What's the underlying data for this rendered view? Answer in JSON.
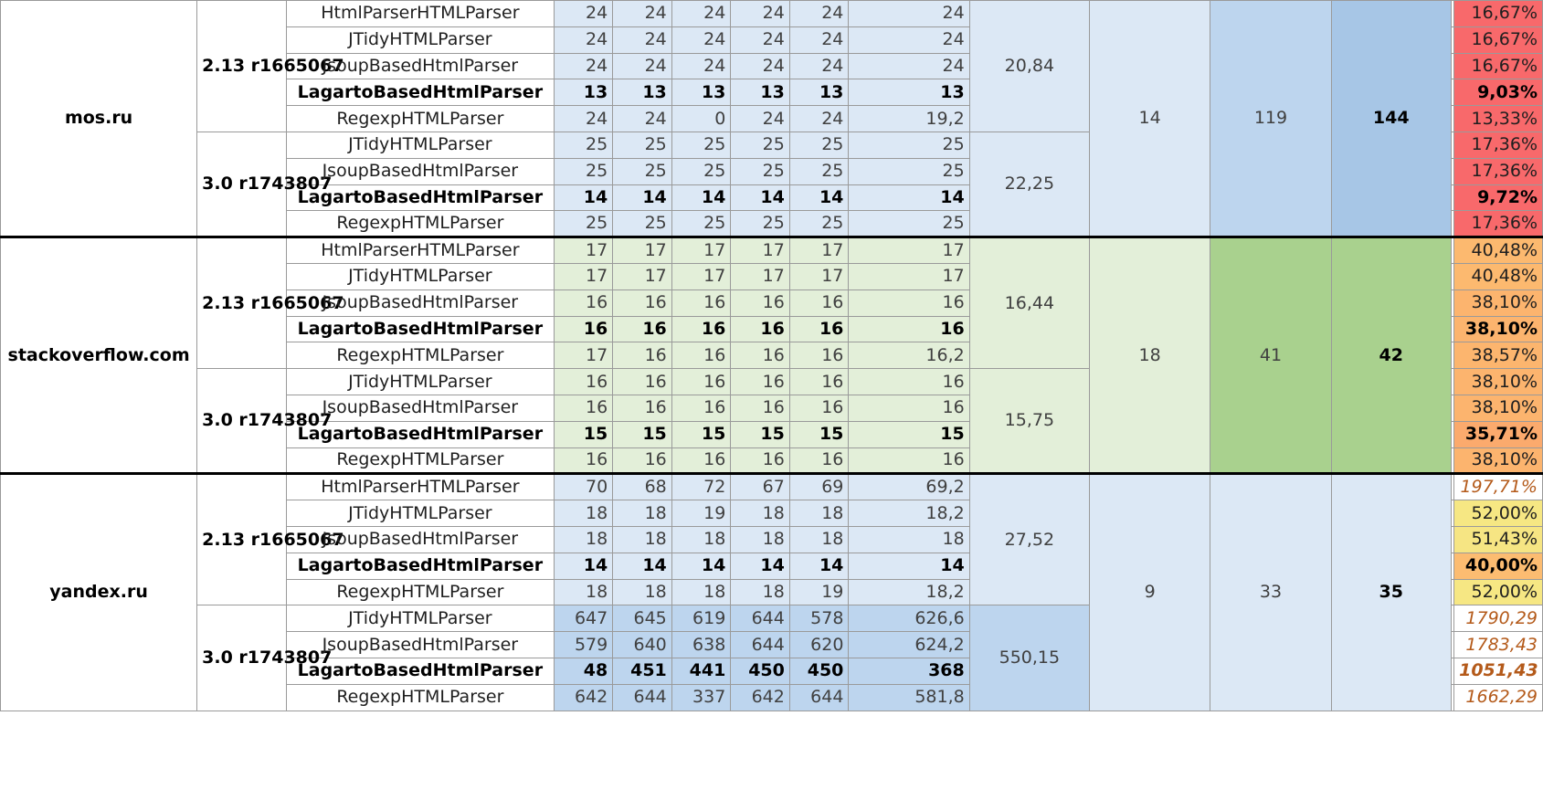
{
  "sites": [
    {
      "name": "mos.ru",
      "col_h": "14",
      "col_i": "119",
      "col_j": "144",
      "versions": [
        {
          "label": "2.13 r1665067",
          "avg": "20,84",
          "rows": [
            {
              "parser": "HtmlParserHTMLParser",
              "bold": false,
              "vals": [
                "24",
                "24",
                "24",
                "24",
                "24"
              ],
              "mean": "24",
              "pct": "16,67%",
              "pct_color": "#f8696b",
              "pct_style": "normal"
            },
            {
              "parser": "JTidyHTMLParser",
              "bold": false,
              "vals": [
                "24",
                "24",
                "24",
                "24",
                "24"
              ],
              "mean": "24",
              "pct": "16,67%",
              "pct_color": "#f8696b",
              "pct_style": "normal"
            },
            {
              "parser": "JsoupBasedHtmlParser",
              "bold": false,
              "vals": [
                "24",
                "24",
                "24",
                "24",
                "24"
              ],
              "mean": "24",
              "pct": "16,67%",
              "pct_color": "#f8696b",
              "pct_style": "normal"
            },
            {
              "parser": "LagartoBasedHtmlParser",
              "bold": true,
              "vals": [
                "13",
                "13",
                "13",
                "13",
                "13"
              ],
              "mean": "13",
              "pct": "9,03%",
              "pct_color": "#f8696b",
              "pct_style": "bold"
            },
            {
              "parser": "RegexpHTMLParser",
              "bold": false,
              "vals": [
                "24",
                "24",
                "0",
                "24",
                "24"
              ],
              "mean": "19,2",
              "pct": "13,33%",
              "pct_color": "#f8696b",
              "pct_style": "normal"
            }
          ]
        },
        {
          "label": "3.0 r1743807",
          "avg": "22,25",
          "rows": [
            {
              "parser": "JTidyHTMLParser",
              "bold": false,
              "vals": [
                "25",
                "25",
                "25",
                "25",
                "25"
              ],
              "mean": "25",
              "pct": "17,36%",
              "pct_color": "#f8696b",
              "pct_style": "normal"
            },
            {
              "parser": "JsoupBasedHtmlParser",
              "bold": false,
              "vals": [
                "25",
                "25",
                "25",
                "25",
                "25"
              ],
              "mean": "25",
              "pct": "17,36%",
              "pct_color": "#f8696b",
              "pct_style": "normal"
            },
            {
              "parser": "LagartoBasedHtmlParser",
              "bold": true,
              "vals": [
                "14",
                "14",
                "14",
                "14",
                "14"
              ],
              "mean": "14",
              "pct": "9,72%",
              "pct_color": "#f8696b",
              "pct_style": "bold"
            },
            {
              "parser": "RegexpHTMLParser",
              "bold": false,
              "vals": [
                "25",
                "25",
                "25",
                "25",
                "25"
              ],
              "mean": "25",
              "pct": "17,36%",
              "pct_color": "#f8696b",
              "pct_style": "normal"
            }
          ]
        }
      ]
    },
    {
      "name": "stackoverflow.com",
      "col_h": "18",
      "col_i": "41",
      "col_j": "42",
      "versions": [
        {
          "label": "2.13 r1665067",
          "avg": "16,44",
          "rows": [
            {
              "parser": "HtmlParserHTMLParser",
              "bold": false,
              "vals": [
                "17",
                "17",
                "17",
                "17",
                "17"
              ],
              "mean": "17",
              "pct": "40,48%",
              "pct_color": "#fcb96f",
              "pct_style": "normal"
            },
            {
              "parser": "JTidyHTMLParser",
              "bold": false,
              "vals": [
                "17",
                "17",
                "17",
                "17",
                "17"
              ],
              "mean": "17",
              "pct": "40,48%",
              "pct_color": "#fcb96f",
              "pct_style": "normal"
            },
            {
              "parser": "JsoupBasedHtmlParser",
              "bold": false,
              "vals": [
                "16",
                "16",
                "16",
                "16",
                "16"
              ],
              "mean": "16",
              "pct": "38,10%",
              "pct_color": "#fcb46e",
              "pct_style": "normal"
            },
            {
              "parser": "LagartoBasedHtmlParser",
              "bold": true,
              "vals": [
                "16",
                "16",
                "16",
                "16",
                "16"
              ],
              "mean": "16",
              "pct": "38,10%",
              "pct_color": "#fcb46e",
              "pct_style": "bold"
            },
            {
              "parser": "RegexpHTMLParser",
              "bold": false,
              "vals": [
                "17",
                "16",
                "16",
                "16",
                "16"
              ],
              "mean": "16,2",
              "pct": "38,57%",
              "pct_color": "#fcb56e",
              "pct_style": "normal"
            }
          ]
        },
        {
          "label": "3.0 r1743807",
          "avg": "15,75",
          "rows": [
            {
              "parser": "JTidyHTMLParser",
              "bold": false,
              "vals": [
                "16",
                "16",
                "16",
                "16",
                "16"
              ],
              "mean": "16",
              "pct": "38,10%",
              "pct_color": "#fcb46e",
              "pct_style": "normal"
            },
            {
              "parser": "JsoupBasedHtmlParser",
              "bold": false,
              "vals": [
                "16",
                "16",
                "16",
                "16",
                "16"
              ],
              "mean": "16",
              "pct": "38,10%",
              "pct_color": "#fcb46e",
              "pct_style": "normal"
            },
            {
              "parser": "LagartoBasedHtmlParser",
              "bold": true,
              "vals": [
                "15",
                "15",
                "15",
                "15",
                "15"
              ],
              "mean": "15",
              "pct": "35,71%",
              "pct_color": "#fbaa6d",
              "pct_style": "bold"
            },
            {
              "parser": "RegexpHTMLParser",
              "bold": false,
              "vals": [
                "16",
                "16",
                "16",
                "16",
                "16"
              ],
              "mean": "16",
              "pct": "38,10%",
              "pct_color": "#fcb46e",
              "pct_style": "normal"
            }
          ]
        }
      ]
    },
    {
      "name": "yandex.ru",
      "col_h": "9",
      "col_i": "33",
      "col_j": "35",
      "versions": [
        {
          "label": "2.13 r1665067",
          "avg": "27,52",
          "rows": [
            {
              "parser": "HtmlParserHTMLParser",
              "bold": false,
              "vals": [
                "70",
                "68",
                "72",
                "67",
                "69"
              ],
              "mean": "69,2",
              "pct": "197,71%",
              "pct_color": "#ffffff",
              "pct_style": "italic"
            },
            {
              "parser": "JTidyHTMLParser",
              "bold": false,
              "vals": [
                "18",
                "18",
                "19",
                "18",
                "18"
              ],
              "mean": "18,2",
              "pct": "52,00%",
              "pct_color": "#f6e783",
              "pct_style": "normal"
            },
            {
              "parser": "JsoupBasedHtmlParser",
              "bold": false,
              "vals": [
                "18",
                "18",
                "18",
                "18",
                "18"
              ],
              "mean": "18",
              "pct": "51,43%",
              "pct_color": "#f6e583",
              "pct_style": "normal"
            },
            {
              "parser": "LagartoBasedHtmlParser",
              "bold": true,
              "vals": [
                "14",
                "14",
                "14",
                "14",
                "14"
              ],
              "mean": "14",
              "pct": "40,00%",
              "pct_color": "#fcbc71",
              "pct_style": "bold"
            },
            {
              "parser": "RegexpHTMLParser",
              "bold": false,
              "vals": [
                "18",
                "18",
                "18",
                "18",
                "19"
              ],
              "mean": "18,2",
              "pct": "52,00%",
              "pct_color": "#f6e783",
              "pct_style": "normal"
            }
          ]
        },
        {
          "label": "3.0 r1743807",
          "avg": "550,15",
          "rows": [
            {
              "parser": "JTidyHTMLParser",
              "bold": false,
              "vals": [
                "647",
                "645",
                "619",
                "644",
                "578"
              ],
              "mean": "626,6",
              "pct": "1790,29",
              "pct_color": "#ffffff",
              "pct_style": "italic"
            },
            {
              "parser": "JsoupBasedHtmlParser",
              "bold": false,
              "vals": [
                "579",
                "640",
                "638",
                "644",
                "620"
              ],
              "mean": "624,2",
              "pct": "1783,43",
              "pct_color": "#ffffff",
              "pct_style": "italic"
            },
            {
              "parser": "LagartoBasedHtmlParser",
              "bold": true,
              "vals": [
                "48",
                "451",
                "441",
                "450",
                "450"
              ],
              "mean": "368",
              "pct": "1051,43",
              "pct_color": "#ffffff",
              "pct_style": "italicbold"
            },
            {
              "parser": "RegexpHTMLParser",
              "bold": false,
              "vals": [
                "642",
                "644",
                "337",
                "642",
                "644"
              ],
              "mean": "581,8",
              "pct": "1662,29",
              "pct_color": "#ffffff",
              "pct_style": "italic"
            }
          ]
        }
      ]
    }
  ],
  "palette": {
    "blue_light": "#dce8f5",
    "blue_mid": "#bdd5ee",
    "blue_dark": "#a7c6e6",
    "green_light": "#e3efd9",
    "green_dark": "#a9d18e"
  }
}
